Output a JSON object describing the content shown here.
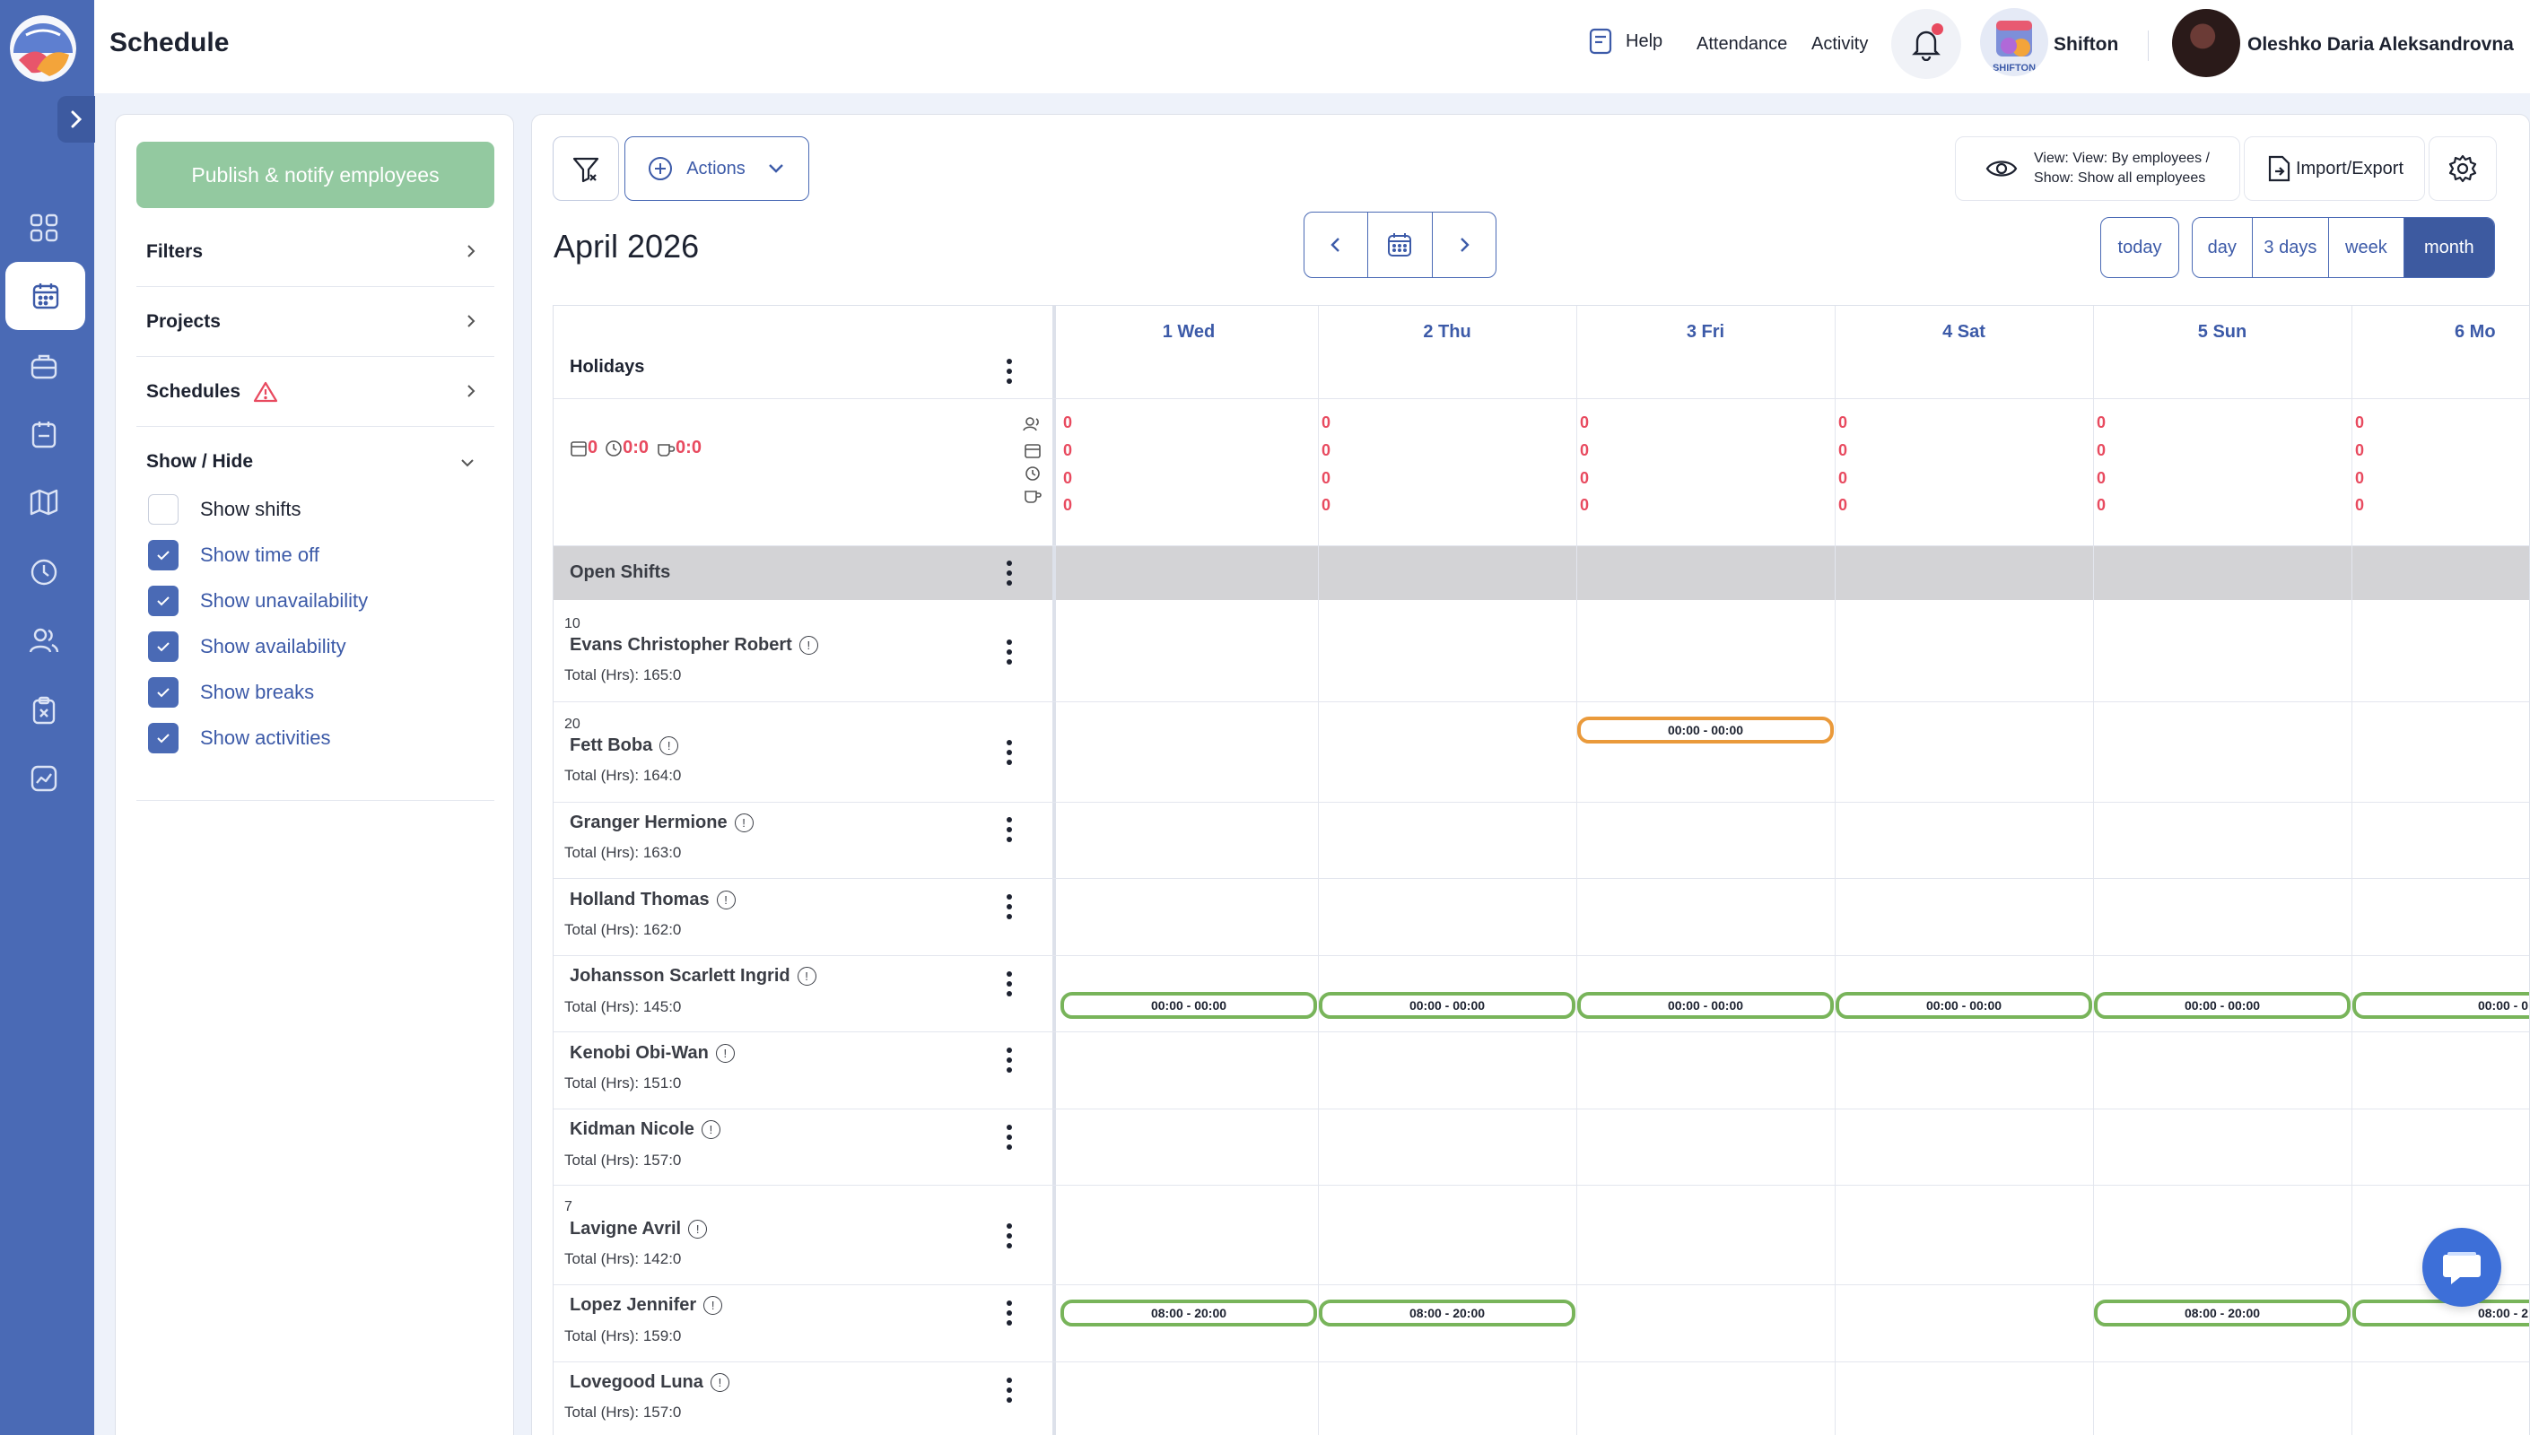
{
  "app": {
    "page_title": "Schedule"
  },
  "topbar": {
    "help": "Help",
    "attendance": "Attendance",
    "activity": "Activity",
    "company_name": "Shifton",
    "company_logo_text": "SHIFTON",
    "user_name": "Oleshko Daria Aleksandrovna"
  },
  "sidebar": {
    "icons": [
      "grid-icon",
      "calendar-icon",
      "briefcase-icon",
      "clipboard-calendar-icon",
      "map-icon",
      "clock-icon",
      "users-icon",
      "clipboard-x-icon",
      "chart-icon"
    ],
    "active_index": 1
  },
  "left_panel": {
    "publish_label": "Publish & notify employees",
    "filters": "Filters",
    "projects": "Projects",
    "schedules": "Schedules",
    "show_hide": "Show / Hide",
    "options": [
      {
        "label": "Show shifts",
        "checked": false
      },
      {
        "label": "Show time off",
        "checked": true
      },
      {
        "label": "Show unavailability",
        "checked": true
      },
      {
        "label": "Show availability",
        "checked": true
      },
      {
        "label": "Show breaks",
        "checked": true
      },
      {
        "label": "Show activities",
        "checked": true
      }
    ]
  },
  "toolbar": {
    "actions_label": "Actions",
    "view_line1": "View: View: By employees /",
    "view_line2": "Show: Show all employees",
    "import_export": "Import/Export"
  },
  "calendar": {
    "month_title": "April 2026",
    "today": "today",
    "ranges": [
      "day",
      "3 days",
      "week",
      "month"
    ],
    "selected_range": "month",
    "days": [
      "1 Wed",
      "2 Thu",
      "3 Fri",
      "4 Sat",
      "5 Sun",
      "6 Mo"
    ],
    "holidays_label": "Holidays",
    "summary": {
      "days": "0",
      "hours": "0:0",
      "breaks": "0:0"
    },
    "day_stat_value": "0",
    "open_shifts_label": "Open Shifts"
  },
  "employees": [
    {
      "num": "10",
      "name": "Evans Christopher Robert",
      "total": "Total (Hrs): 165:0"
    },
    {
      "num": "20",
      "name": "Fett Boba",
      "total": "Total (Hrs): 164:0"
    },
    {
      "num": "",
      "name": "Granger Hermione",
      "total": "Total (Hrs): 163:0"
    },
    {
      "num": "",
      "name": "Holland Thomas",
      "total": "Total (Hrs): 162:0"
    },
    {
      "num": "",
      "name": "Johansson Scarlett Ingrid",
      "total": "Total (Hrs): 145:0"
    },
    {
      "num": "",
      "name": "Kenobi Obi-Wan",
      "total": "Total (Hrs): 151:0"
    },
    {
      "num": "",
      "name": "Kidman Nicole",
      "total": "Total (Hrs): 157:0"
    },
    {
      "num": "7",
      "name": "Lavigne Avril",
      "total": "Total (Hrs): 142:0"
    },
    {
      "num": "",
      "name": "Lopez Jennifer",
      "total": "Total (Hrs): 159:0"
    },
    {
      "num": "",
      "name": "Lovegood Luna",
      "total": "Total (Hrs): 157:0"
    }
  ],
  "shifts": {
    "evans_fri": "00:00 - 00:00",
    "holland": [
      "00:00 - 00:00",
      "00:00 - 00:00",
      "00:00 - 00:00",
      "00:00 - 00:00",
      "00:00 - 00:00",
      "00:00 - 0"
    ],
    "lavigne": [
      "08:00 - 20:00",
      "08:00 - 20:00",
      "08:00 - 20:00",
      "08:00 - 2"
    ]
  },
  "colors": {
    "rail": "#4a6ab5",
    "accent": "#3c5aa8",
    "publish": "#93c9a0",
    "alert": "#e84a5f",
    "shift_green": "#78b45a",
    "shift_orange": "#ea9a3b"
  }
}
